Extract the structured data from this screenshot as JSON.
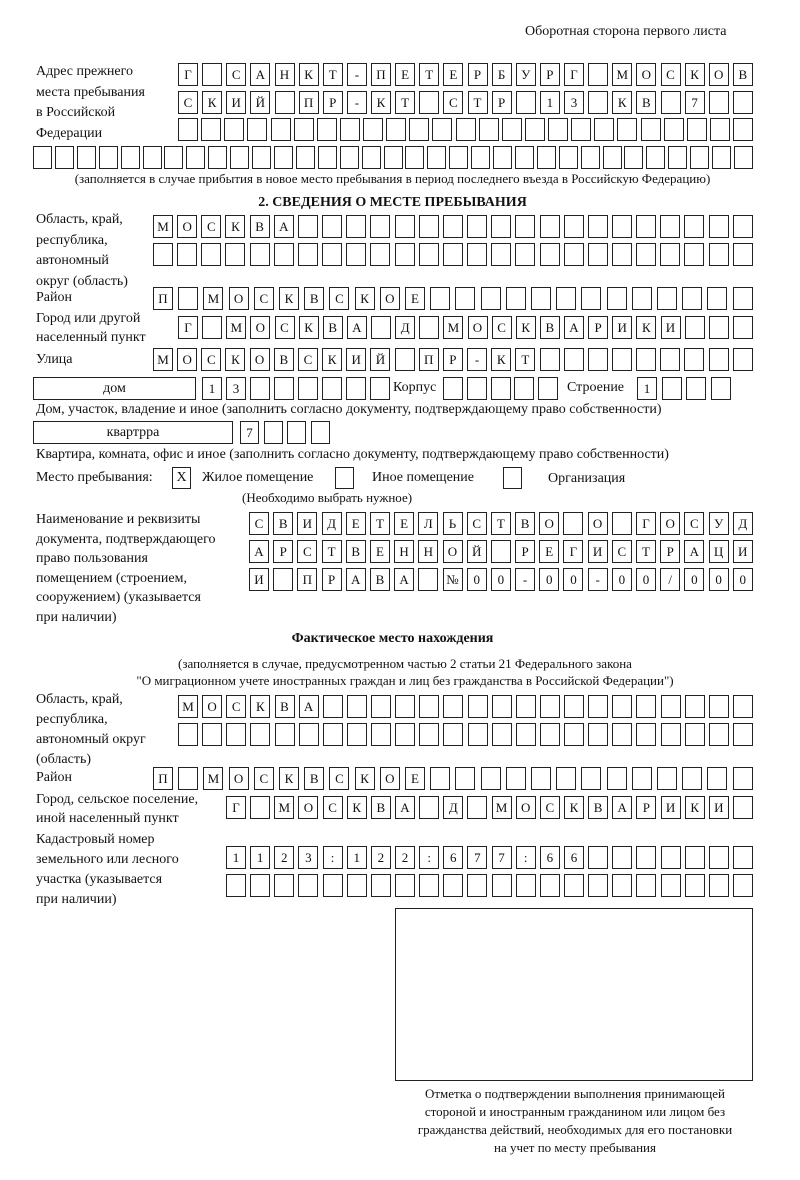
{
  "header": {
    "page_side": "Оборотная сторона первого листа"
  },
  "previous_address": {
    "label": [
      "Адрес прежнего",
      "места пребывания",
      "в Российской",
      "Федерации"
    ],
    "rows": [
      [
        "Г",
        " ",
        "С",
        "А",
        "Н",
        "К",
        "Т",
        "-",
        "П",
        "Е",
        "Т",
        "Е",
        "Р",
        "Б",
        "У",
        "Р",
        "Г",
        " ",
        "М",
        "О",
        "С",
        "К",
        "О",
        "В"
      ],
      [
        "С",
        "К",
        "И",
        "Й",
        " ",
        "П",
        "Р",
        "-",
        "К",
        "Т",
        " ",
        "С",
        "Т",
        "Р",
        " ",
        "1",
        "3",
        " ",
        "К",
        "В",
        " ",
        "7",
        " ",
        " "
      ],
      [
        " ",
        " ",
        " ",
        " ",
        " ",
        " ",
        " ",
        " ",
        " ",
        " ",
        " ",
        " ",
        " ",
        " ",
        " ",
        " ",
        " ",
        " ",
        " ",
        " ",
        " ",
        " ",
        " ",
        " ",
        " "
      ],
      [
        " ",
        " ",
        " ",
        " ",
        " ",
        " ",
        " ",
        " ",
        " ",
        " ",
        " ",
        " ",
        " ",
        " ",
        " ",
        " ",
        " ",
        " ",
        " ",
        " ",
        " ",
        " ",
        " ",
        " ",
        " ",
        " ",
        " ",
        " ",
        " ",
        " ",
        " ",
        " ",
        " "
      ]
    ],
    "note": "(заполняется в случае прибытия в новое место пребывания в период последнего въезда в Российскую Федерацию)"
  },
  "section2": {
    "title": "2. СВЕДЕНИЯ О МЕСТЕ ПРЕБЫВАНИЯ",
    "region_label": [
      "Область, край,",
      "республика,",
      "автономный",
      "округ (область)"
    ],
    "region_rows": [
      [
        "М",
        "О",
        "С",
        "К",
        "В",
        "А",
        " ",
        " ",
        " ",
        " ",
        " ",
        " ",
        " ",
        " ",
        " ",
        " ",
        " ",
        " ",
        " ",
        " ",
        " ",
        " ",
        " ",
        " ",
        " "
      ],
      [
        " ",
        " ",
        " ",
        " ",
        " ",
        " ",
        " ",
        " ",
        " ",
        " ",
        " ",
        " ",
        " ",
        " ",
        " ",
        " ",
        " ",
        " ",
        " ",
        " ",
        " ",
        " ",
        " ",
        " ",
        " "
      ]
    ],
    "district_label": "Район",
    "district_row": [
      "П",
      " ",
      "М",
      "О",
      "С",
      "К",
      "В",
      "С",
      "К",
      "О",
      "Е",
      " ",
      " ",
      " ",
      " ",
      " ",
      " ",
      " ",
      " ",
      " ",
      " ",
      " ",
      " ",
      " "
    ],
    "city_label": [
      "Город или другой",
      "населенный пункт"
    ],
    "city_row": [
      "Г",
      " ",
      "М",
      "О",
      "С",
      "К",
      "В",
      "А",
      " ",
      "Д",
      " ",
      "М",
      "О",
      "С",
      "К",
      "В",
      "А",
      "Р",
      "И",
      "К",
      "И",
      " ",
      " ",
      " "
    ],
    "street_label": "Улица",
    "street_row": [
      "М",
      "О",
      "С",
      "К",
      "О",
      "В",
      "С",
      "К",
      "И",
      "Й",
      " ",
      "П",
      "Р",
      "-",
      "К",
      "Т",
      " ",
      " ",
      " ",
      " ",
      " ",
      " ",
      " ",
      " ",
      " "
    ],
    "house_type": "дом",
    "house_cells": [
      "1",
      "3",
      " ",
      " ",
      " ",
      " ",
      " ",
      " "
    ],
    "corpus_label": "Корпус",
    "corpus_cells": [
      " ",
      " ",
      " ",
      " ",
      " "
    ],
    "building_label": "Строение",
    "building_cells": [
      "1",
      " ",
      " ",
      " "
    ],
    "house_note": "Дом, участок, владение и иное (заполнить согласно документу, подтверждающему право собственности)",
    "apartment_type": "квартрра",
    "apartment_cells": [
      "7",
      " ",
      " ",
      " "
    ],
    "apartment_note": "Квартира, комната, офис и иное (заполнить согласно документу, подтверждающему право собственности)",
    "stay_place_label": "Место пребывания:",
    "stay_options": [
      {
        "label": "Жилое помещение",
        "mark": "X"
      },
      {
        "label": "Иное помещение",
        "mark": ""
      },
      {
        "label": "Организация",
        "mark": ""
      }
    ],
    "stay_hint": "(Необходимо выбрать нужное)",
    "document_label": [
      "Наименование и реквизиты",
      "документа, подтверждающего",
      "право пользования",
      "помещением (строением,",
      "сооружением) (указывается",
      "при наличии)"
    ],
    "document_rows": [
      [
        "С",
        "В",
        "И",
        "Д",
        "Е",
        "Т",
        "Е",
        "Л",
        "Ь",
        "С",
        "Т",
        "В",
        "О",
        " ",
        "О",
        " ",
        "Г",
        "О",
        "С",
        "У",
        "Д"
      ],
      [
        "А",
        "Р",
        "С",
        "Т",
        "В",
        "Е",
        "Н",
        "Н",
        "О",
        "Й",
        " ",
        "Р",
        "Е",
        "Г",
        "И",
        "С",
        "Т",
        "Р",
        "А",
        "Ц",
        "И"
      ],
      [
        "И",
        " ",
        "П",
        "Р",
        "А",
        "В",
        "А",
        " ",
        "№",
        "0",
        "0",
        "-",
        "0",
        "0",
        "-",
        "0",
        "0",
        "/",
        "0",
        "0",
        "0"
      ]
    ]
  },
  "actual_location": {
    "title": "Фактическое место нахождения",
    "note": [
      "(заполняется в случае, предусмотренном частью 2 статьи 21 Федерального закона",
      "\"О миграционном учете иностранных граждан и лиц без гражданства в Российской Федерации\")"
    ],
    "region_label": [
      "Область, край,",
      "республика,",
      "автономный округ",
      "(область)"
    ],
    "region_rows": [
      [
        "М",
        "О",
        "С",
        "К",
        "В",
        "А",
        " ",
        " ",
        " ",
        " ",
        " ",
        " ",
        " ",
        " ",
        " ",
        " ",
        " ",
        " ",
        " ",
        " ",
        " ",
        " ",
        " ",
        " "
      ],
      [
        " ",
        " ",
        " ",
        " ",
        " ",
        " ",
        " ",
        " ",
        " ",
        " ",
        " ",
        " ",
        " ",
        " ",
        " ",
        " ",
        " ",
        " ",
        " ",
        " ",
        " ",
        " ",
        " ",
        " "
      ]
    ],
    "district_label": "Район",
    "district_row": [
      "П",
      " ",
      "М",
      "О",
      "С",
      "К",
      "В",
      "С",
      "К",
      "О",
      "Е",
      " ",
      " ",
      " ",
      " ",
      " ",
      " ",
      " ",
      " ",
      " ",
      " ",
      " ",
      " ",
      " "
    ],
    "city_label": [
      "Город, сельское поселение,",
      "иной населенный пункт"
    ],
    "city_row": [
      "Г",
      " ",
      "М",
      "О",
      "С",
      "К",
      "В",
      "А",
      " ",
      "Д",
      " ",
      "М",
      "О",
      "С",
      "К",
      "В",
      "А",
      "Р",
      "И",
      "К",
      "И",
      " "
    ],
    "cadastral_label": [
      "Кадастровый номер",
      "земельного или лесного",
      "участка (указывается",
      "при наличии)"
    ],
    "cadastral_rows": [
      [
        "1",
        "1",
        "2",
        "3",
        ":",
        "1",
        "2",
        "2",
        ":",
        "6",
        "7",
        "7",
        ":",
        "6",
        "6",
        " ",
        " ",
        " ",
        " ",
        " ",
        " ",
        " "
      ],
      [
        " ",
        " ",
        " ",
        " ",
        " ",
        " ",
        " ",
        " ",
        " ",
        " ",
        " ",
        " ",
        " ",
        " ",
        " ",
        " ",
        " ",
        " ",
        " ",
        " ",
        " ",
        " "
      ]
    ]
  },
  "confirmation": {
    "caption": [
      "Отметка о подтверждении выполнения принимающей",
      "стороной и иностранным гражданином или лицом без",
      "гражданства действий, необходимых для его постановки",
      "на учет по месту пребывания"
    ]
  }
}
